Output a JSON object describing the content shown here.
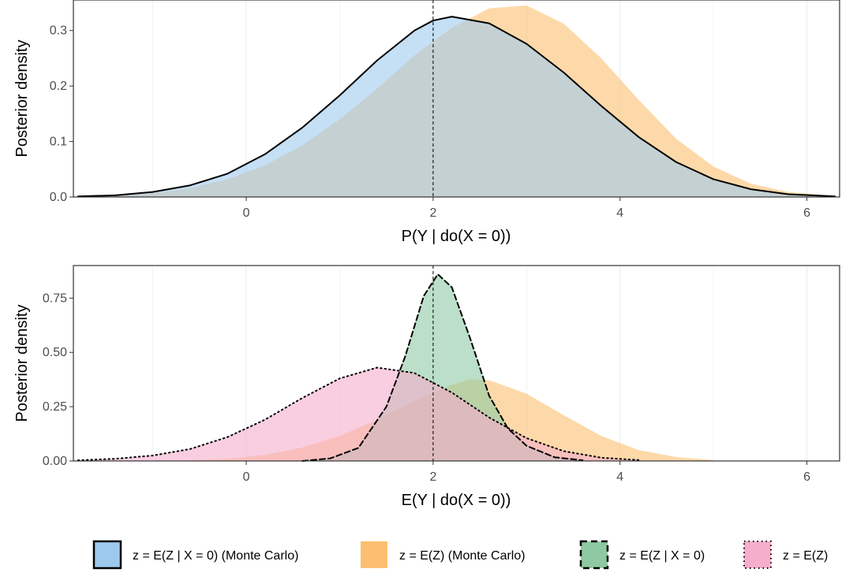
{
  "colors": {
    "blue_fill": "#9ec9ee",
    "orange_fill": "#fcbf6f",
    "green_fill": "#8ec9a3",
    "pink_fill": "#f5aecb",
    "line": "#000000",
    "grid": "#ebebeb",
    "panel_border": "#333333",
    "tick_text": "#4d4d4d"
  },
  "legend": {
    "items": [
      {
        "label": "z = E(Z | X = 0) (Monte Carlo)",
        "fill": "#9ec9ee",
        "border": "solid"
      },
      {
        "label": "z = E(Z)  (Monte Carlo)",
        "fill": "#fcbf6f",
        "border": "none"
      },
      {
        "label": "z = E(Z | X = 0)",
        "fill": "#8ec9a3",
        "border": "dashed"
      },
      {
        "label": "z = E(Z)",
        "fill": "#f5aecb",
        "border": "dotted"
      }
    ]
  },
  "chart_data": [
    {
      "type": "area",
      "xlabel": "P(Y | do(X = 0))",
      "ylabel": "Posterior density",
      "xlim": [
        -1.85,
        6.35
      ],
      "ylim": [
        0,
        0.355
      ],
      "x_ticks": [
        0,
        2,
        4,
        6
      ],
      "x_tick_labels": [
        "0",
        "2",
        "4",
        "6"
      ],
      "y_ticks": [
        0.0,
        0.1,
        0.2,
        0.3
      ],
      "y_tick_labels": [
        "0.0",
        "0.1",
        "0.2",
        "0.3"
      ],
      "vline": 2,
      "grid": true,
      "series": [
        {
          "name": "z = E(Z)  (Monte Carlo)",
          "fill": "#fcbf6f",
          "border": "none",
          "x": [
            -1.8,
            -1.4,
            -1.0,
            -0.6,
            -0.2,
            0.2,
            0.6,
            1.0,
            1.4,
            1.8,
            2.2,
            2.6,
            3.0,
            3.4,
            3.8,
            4.2,
            4.6,
            5.0,
            5.4,
            5.8,
            6.3
          ],
          "y": [
            0.001,
            0.003,
            0.007,
            0.016,
            0.032,
            0.057,
            0.093,
            0.14,
            0.195,
            0.255,
            0.305,
            0.34,
            0.345,
            0.312,
            0.25,
            0.175,
            0.105,
            0.055,
            0.024,
            0.009,
            0.002
          ]
        },
        {
          "name": "z = E(Z | X = 0) (Monte Carlo)",
          "fill": "#9ec9ee",
          "border": "solid",
          "x": [
            -1.8,
            -1.4,
            -1.0,
            -0.6,
            -0.2,
            0.2,
            0.6,
            1.0,
            1.4,
            1.8,
            2.0,
            2.2,
            2.6,
            3.0,
            3.4,
            3.8,
            4.2,
            4.6,
            5.0,
            5.4,
            5.8,
            6.3
          ],
          "y": [
            0.001,
            0.003,
            0.009,
            0.021,
            0.042,
            0.077,
            0.125,
            0.183,
            0.246,
            0.3,
            0.318,
            0.325,
            0.313,
            0.276,
            0.224,
            0.164,
            0.108,
            0.063,
            0.032,
            0.014,
            0.005,
            0.001
          ]
        }
      ]
    },
    {
      "type": "area",
      "xlabel": "E(Y | do(X = 0))",
      "ylabel": "Posterior density",
      "xlim": [
        -1.85,
        6.35
      ],
      "ylim": [
        0,
        0.9
      ],
      "x_ticks": [
        0,
        2,
        4,
        6
      ],
      "x_tick_labels": [
        "0",
        "2",
        "4",
        "6"
      ],
      "y_ticks": [
        0.0,
        0.25,
        0.5,
        0.75
      ],
      "y_tick_labels": [
        "0.00",
        "0.25",
        "0.50",
        "0.75"
      ],
      "vline": 2,
      "grid": true,
      "series": [
        {
          "name": "z = E(Z)  (Monte Carlo)",
          "fill": "#fcbf6f",
          "border": "none",
          "x": [
            -1.0,
            -0.6,
            -0.2,
            0.2,
            0.6,
            1.0,
            1.4,
            1.8,
            2.2,
            2.4,
            2.6,
            3.0,
            3.4,
            3.8,
            4.2,
            4.6,
            5.0
          ],
          "y": [
            0.0,
            0.003,
            0.01,
            0.028,
            0.062,
            0.115,
            0.19,
            0.275,
            0.35,
            0.375,
            0.372,
            0.31,
            0.21,
            0.115,
            0.05,
            0.018,
            0.004
          ]
        },
        {
          "name": "z = E(Z | X = 0)",
          "fill": "#8ec9a3",
          "border": "dashed",
          "x": [
            0.6,
            0.9,
            1.2,
            1.5,
            1.7,
            1.9,
            2.05,
            2.2,
            2.4,
            2.6,
            2.8,
            3.0,
            3.3,
            3.6
          ],
          "y": [
            0.0,
            0.012,
            0.06,
            0.25,
            0.48,
            0.76,
            0.86,
            0.8,
            0.56,
            0.3,
            0.15,
            0.07,
            0.017,
            0.003
          ]
        },
        {
          "name": "z = E(Z)",
          "fill": "#f5aecb",
          "border": "dotted",
          "x": [
            -1.8,
            -1.4,
            -1.0,
            -0.6,
            -0.2,
            0.2,
            0.6,
            1.0,
            1.4,
            1.8,
            2.2,
            2.6,
            3.0,
            3.4,
            3.8,
            4.2
          ],
          "y": [
            0.003,
            0.01,
            0.025,
            0.055,
            0.11,
            0.19,
            0.29,
            0.38,
            0.43,
            0.405,
            0.315,
            0.2,
            0.105,
            0.045,
            0.015,
            0.004
          ]
        }
      ]
    }
  ]
}
